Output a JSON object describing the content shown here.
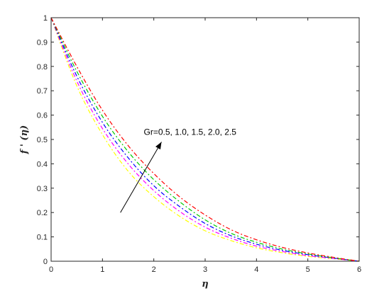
{
  "chart_data": {
    "type": "line",
    "xlabel": "η",
    "ylabel": "f ' (η)",
    "xlim": [
      0,
      6
    ],
    "ylim": [
      0,
      1
    ],
    "xticks": [
      "0",
      "1",
      "2",
      "3",
      "4",
      "5",
      "6"
    ],
    "yticks": [
      "0",
      "0.1",
      "0.2",
      "0.3",
      "0.4",
      "0.5",
      "0.6",
      "0.7",
      "0.8",
      "0.9",
      "1"
    ],
    "grid": false,
    "legend": "none",
    "annotation": "Gr=0.5, 1.0, 1.5, 2.0, 2.5",
    "x": [
      0,
      0.5,
      1,
      1.5,
      2,
      2.5,
      3,
      3.5,
      4,
      4.5,
      5,
      5.5,
      6
    ],
    "series": [
      {
        "color": "#ffff00",
        "line_style": "dash-dot",
        "values": [
          1,
          0.72,
          0.52,
          0.37,
          0.265,
          0.185,
          0.125,
          0.085,
          0.055,
          0.035,
          0.02,
          0.01,
          0
        ]
      },
      {
        "color": "#ff00ff",
        "line_style": "dash-dot",
        "values": [
          1,
          0.74,
          0.545,
          0.4,
          0.29,
          0.205,
          0.14,
          0.095,
          0.062,
          0.04,
          0.023,
          0.011,
          0
        ]
      },
      {
        "color": "#0000ff",
        "line_style": "dash-dot",
        "values": [
          1,
          0.76,
          0.57,
          0.425,
          0.31,
          0.225,
          0.155,
          0.105,
          0.07,
          0.045,
          0.027,
          0.013,
          0
        ]
      },
      {
        "color": "#00cc00",
        "line_style": "dash-dot",
        "values": [
          1,
          0.78,
          0.595,
          0.45,
          0.335,
          0.245,
          0.17,
          0.115,
          0.078,
          0.05,
          0.03,
          0.014,
          0
        ]
      },
      {
        "color": "#ff0000",
        "line_style": "dash-dot",
        "values": [
          1,
          0.8,
          0.62,
          0.475,
          0.36,
          0.265,
          0.19,
          0.13,
          0.088,
          0.057,
          0.034,
          0.016,
          0
        ]
      }
    ],
    "arrow": {
      "from": [
        1.35,
        0.2
      ],
      "to": [
        2.15,
        0.49
      ]
    }
  }
}
